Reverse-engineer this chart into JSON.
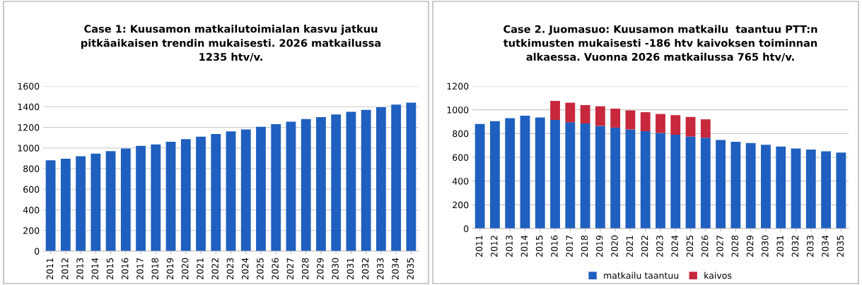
{
  "chart_data": [
    {
      "type": "bar",
      "title": "Case 1: Kuusamon matkailutoimialan kasvu jatkuu\npitkäaikaisen trendin mukaisesti. 2026 matkailussa\n1235 htv/v.",
      "categories": [
        "2011",
        "2012",
        "2013",
        "2014",
        "2015",
        "2016",
        "2017",
        "2018",
        "2019",
        "2020",
        "2021",
        "2022",
        "2023",
        "2024",
        "2025",
        "2026",
        "2027",
        "2028",
        "2029",
        "2030",
        "2031",
        "2032",
        "2033",
        "2034",
        "2035"
      ],
      "series": [
        {
          "color": "#1f5fbf",
          "values": [
            880,
            895,
            920,
            945,
            970,
            995,
            1020,
            1035,
            1060,
            1085,
            1110,
            1135,
            1160,
            1180,
            1205,
            1230,
            1255,
            1280,
            1300,
            1325,
            1350,
            1370,
            1395,
            1420,
            1440
          ]
        }
      ],
      "ylim": [
        0,
        1600
      ],
      "yticks": [
        0,
        200,
        400,
        600,
        800,
        1000,
        1200,
        1400,
        1600
      ],
      "grid": "y"
    },
    {
      "type": "bar",
      "title": "Case 2. Juomasuo: Kuusamon matkailu  taantuu PTT:n\ntutkimusten mukaisesti -186 htv kaivoksen toiminnan\nalkaessa. Vuonna 2026 matkailussa 765 htv/v.",
      "categories": [
        "2011",
        "2012",
        "2013",
        "2014",
        "2015",
        "2016",
        "2017",
        "2018",
        "2019",
        "2020",
        "2021",
        "2022",
        "2023",
        "2024",
        "2025",
        "2026",
        "2027",
        "2028",
        "2029",
        "2030",
        "2031",
        "2032",
        "2033",
        "2034",
        "2035"
      ],
      "stacked": true,
      "series": [
        {
          "name": "matkailu taantuu",
          "color": "#1f5fbf",
          "values": [
            880,
            905,
            930,
            950,
            935,
            915,
            895,
            885,
            865,
            850,
            835,
            820,
            805,
            790,
            775,
            765,
            745,
            730,
            720,
            705,
            690,
            675,
            665,
            650,
            640
          ]
        },
        {
          "name": "kaivos",
          "color": "#c8283c",
          "values": [
            null,
            null,
            null,
            null,
            null,
            160,
            165,
            155,
            165,
            160,
            160,
            160,
            160,
            165,
            165,
            155,
            null,
            null,
            null,
            null,
            null,
            null,
            null,
            null,
            null
          ]
        }
      ],
      "ylim": [
        0,
        1200
      ],
      "yticks": [
        0,
        200,
        400,
        600,
        800,
        1000,
        1200
      ],
      "grid": "y",
      "legend": "bottom"
    }
  ]
}
